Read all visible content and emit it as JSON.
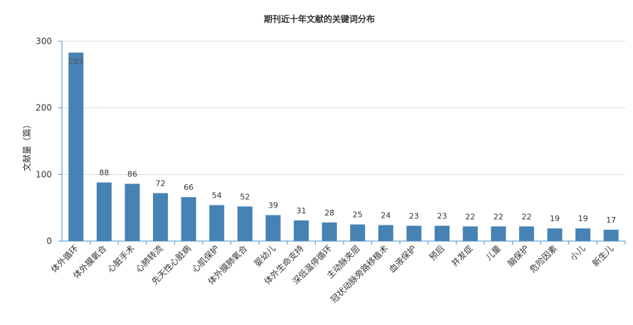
{
  "chart_data": {
    "type": "bar",
    "title": "期刊近十年文献的关键词分布",
    "ylabel": "文献量（篇）",
    "xlabel": "",
    "ylim": [
      0,
      300
    ],
    "yticks": [
      0,
      100,
      200,
      300
    ],
    "grid": true,
    "legend": "none",
    "bar_color": "#4682b4",
    "categories": [
      "体外循环",
      "体外膜氧合",
      "心脏手术",
      "心肺转流",
      "先天性心脏病",
      "心肌保护",
      "体外膜肺氧合",
      "婴幼儿",
      "体外生命支持",
      "深低温停循环",
      "主动脉夹层",
      "冠状动脉旁路移植术",
      "血液保护",
      "预后",
      "并发症",
      "儿童",
      "脑保护",
      "危险因素",
      "小儿",
      "新生儿"
    ],
    "values": [
      283,
      88,
      86,
      72,
      66,
      54,
      52,
      39,
      31,
      28,
      25,
      24,
      23,
      23,
      22,
      22,
      22,
      19,
      19,
      17
    ]
  }
}
